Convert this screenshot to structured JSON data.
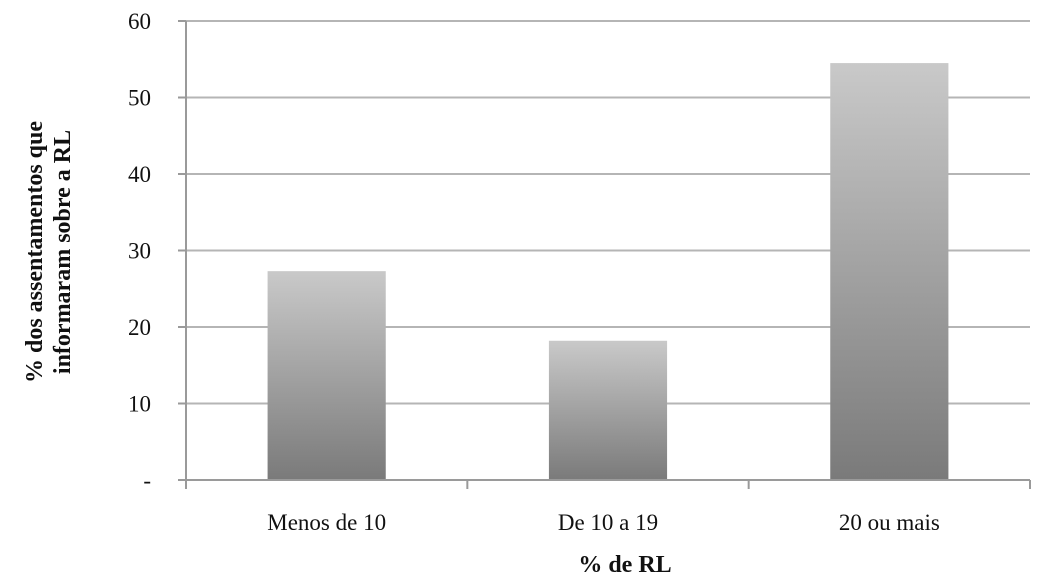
{
  "chart_data": {
    "type": "bar",
    "categories": [
      "Menos de 10",
      "De 10 a 19",
      "20 ou mais"
    ],
    "values": [
      27.3,
      18.2,
      54.5
    ],
    "xlabel": "% de RL",
    "ylabel_lines": [
      "% dos assentamentos que",
      "informaram sobre a RL"
    ],
    "ylim": [
      0,
      60
    ],
    "yticks": [
      0,
      10,
      20,
      30,
      40,
      50,
      60
    ],
    "ytick_labels": [
      "-",
      "10",
      "20",
      "30",
      "40",
      "50",
      "60"
    ],
    "grid": true,
    "legend": "none",
    "colors": {
      "bar_top": "#c9c9c9",
      "bar_bottom": "#7a7a7a",
      "grid": "#b5b5b5",
      "axis": "#9a9a9a"
    }
  }
}
